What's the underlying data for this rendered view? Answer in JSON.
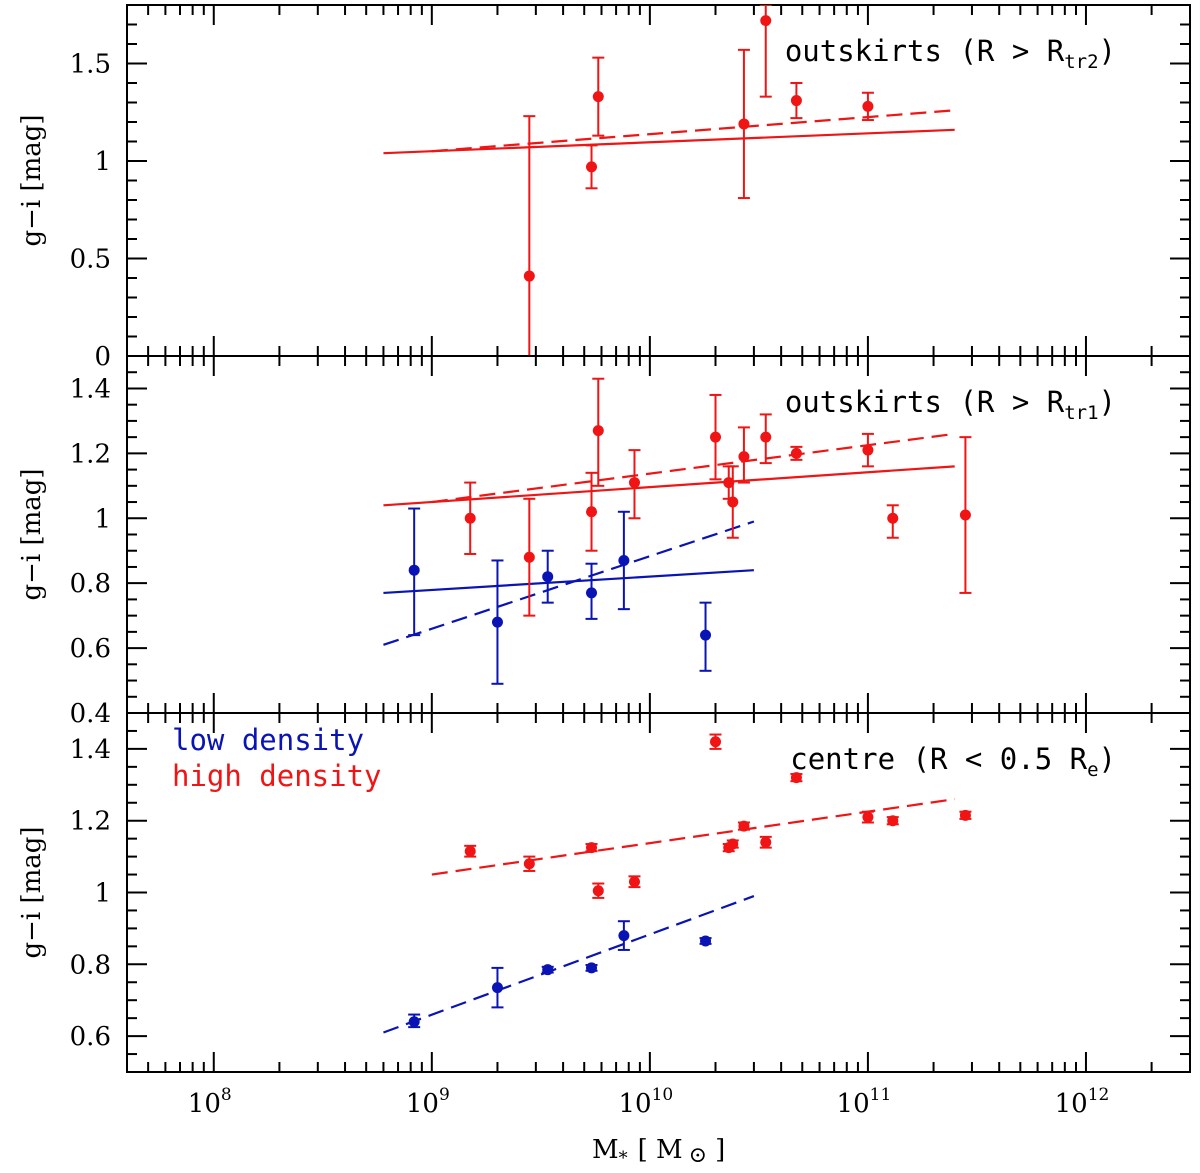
{
  "chart_data": {
    "type": "scatter",
    "xlabel": "M",
    "xlabel_subscript": "*",
    "xlabel_unit": "[ M",
    "xlabel_unit_close": "]",
    "xlabel_unit_symbol": "⊙",
    "xscale": "log",
    "xlim": [
      40000000,
      3000000000000
    ],
    "xticks": [
      {
        "value": 100000000,
        "base": "10",
        "exp": "8"
      },
      {
        "value": 1000000000,
        "base": "10",
        "exp": "9"
      },
      {
        "value": 10000000000,
        "base": "10",
        "exp": "10"
      },
      {
        "value": 100000000000,
        "base": "10",
        "exp": "11"
      },
      {
        "value": 1000000000000,
        "base": "10",
        "exp": "12"
      }
    ],
    "colors": {
      "low": "#0a14b4",
      "high": "#f01414"
    },
    "legend": [
      {
        "label": "low density",
        "color": "#0a14b4"
      },
      {
        "label": "high density",
        "color": "#f01414"
      }
    ],
    "panels": [
      {
        "label": "outskirts (R > R",
        "label_sub": "tr2",
        "label_close": ")",
        "ylabel": "g−i [mag]",
        "ylim": [
          0,
          1.8
        ],
        "yticks": [
          {
            "v": 0,
            "t": "0"
          },
          {
            "v": 0.5,
            "t": "0.5"
          },
          {
            "v": 1,
            "t": "1"
          },
          {
            "v": 1.5,
            "t": "1.5"
          }
        ],
        "yminor": [
          0.1,
          0.2,
          0.3,
          0.4,
          0.6,
          0.7,
          0.8,
          0.9,
          1.1,
          1.2,
          1.3,
          1.4,
          1.6,
          1.7
        ],
        "series": [
          {
            "group": "high",
            "points": [
              {
                "x": 2800000000,
                "y": 0.41,
                "lo": 0.0,
                "hi": 1.23
              },
              {
                "x": 5400000000,
                "y": 0.97,
                "lo": 0.86,
                "hi": 1.08
              },
              {
                "x": 5800000000,
                "y": 1.33,
                "lo": 1.13,
                "hi": 1.53
              },
              {
                "x": 27000000000,
                "y": 1.19,
                "lo": 0.81,
                "hi": 1.57
              },
              {
                "x": 34000000000,
                "y": 1.72,
                "lo": 1.33,
                "hi": 1.8
              },
              {
                "x": 47000000000,
                "y": 1.31,
                "lo": 1.22,
                "hi": 1.4
              },
              {
                "x": 100000000000,
                "y": 1.28,
                "lo": 1.21,
                "hi": 1.35
              }
            ]
          }
        ],
        "lines": [
          {
            "group": "high",
            "style": "solid",
            "x": [
              600000000,
              250000000000
            ],
            "y": [
              1.04,
              1.16
            ]
          },
          {
            "group": "high",
            "style": "dashed",
            "x": [
              1000000000,
              250000000000
            ],
            "y": [
              1.05,
              1.26
            ]
          }
        ]
      },
      {
        "label": "outskirts (R > R",
        "label_sub": "tr1",
        "label_close": ")",
        "ylabel": "g−i [mag]",
        "ylim": [
          0.4,
          1.5
        ],
        "yticks": [
          {
            "v": 0.4,
            "t": "0.4"
          },
          {
            "v": 0.6,
            "t": "0.6"
          },
          {
            "v": 0.8,
            "t": "0.8"
          },
          {
            "v": 1,
            "t": "1"
          },
          {
            "v": 1.2,
            "t": "1.2"
          },
          {
            "v": 1.4,
            "t": "1.4"
          }
        ],
        "yminor": [
          0.45,
          0.5,
          0.55,
          0.65,
          0.7,
          0.75,
          0.85,
          0.9,
          0.95,
          1.05,
          1.1,
          1.15,
          1.25,
          1.3,
          1.35,
          1.45
        ],
        "series": [
          {
            "group": "high",
            "points": [
              {
                "x": 1500000000,
                "y": 1.0,
                "lo": 0.89,
                "hi": 1.11
              },
              {
                "x": 2800000000,
                "y": 0.88,
                "lo": 0.7,
                "hi": 1.06
              },
              {
                "x": 5400000000,
                "y": 1.02,
                "lo": 0.9,
                "hi": 1.14
              },
              {
                "x": 5800000000,
                "y": 1.27,
                "lo": 1.1,
                "hi": 1.43
              },
              {
                "x": 8500000000,
                "y": 1.11,
                "lo": 1.0,
                "hi": 1.21
              },
              {
                "x": 20000000000,
                "y": 1.25,
                "lo": 1.12,
                "hi": 1.38
              },
              {
                "x": 23000000000,
                "y": 1.11,
                "lo": 1.06,
                "hi": 1.16
              },
              {
                "x": 24000000000,
                "y": 1.05,
                "lo": 0.94,
                "hi": 1.16
              },
              {
                "x": 27000000000,
                "y": 1.19,
                "lo": 1.11,
                "hi": 1.28
              },
              {
                "x": 34000000000,
                "y": 1.25,
                "lo": 1.17,
                "hi": 1.32
              },
              {
                "x": 47000000000,
                "y": 1.2,
                "lo": 1.18,
                "hi": 1.22
              },
              {
                "x": 100000000000,
                "y": 1.21,
                "lo": 1.16,
                "hi": 1.26
              },
              {
                "x": 130000000000,
                "y": 1.0,
                "lo": 0.94,
                "hi": 1.04
              },
              {
                "x": 280000000000,
                "y": 1.01,
                "lo": 0.77,
                "hi": 1.25
              }
            ]
          },
          {
            "group": "low",
            "points": [
              {
                "x": 830000000,
                "y": 0.84,
                "lo": 0.64,
                "hi": 1.03
              },
              {
                "x": 2000000000,
                "y": 0.68,
                "lo": 0.49,
                "hi": 0.87
              },
              {
                "x": 3400000000,
                "y": 0.82,
                "lo": 0.74,
                "hi": 0.9
              },
              {
                "x": 5400000000,
                "y": 0.77,
                "lo": 0.69,
                "hi": 0.86
              },
              {
                "x": 7600000000,
                "y": 0.87,
                "lo": 0.72,
                "hi": 1.02
              },
              {
                "x": 18000000000,
                "y": 0.64,
                "lo": 0.53,
                "hi": 0.74
              }
            ]
          }
        ],
        "lines": [
          {
            "group": "high",
            "style": "solid",
            "x": [
              600000000,
              250000000000
            ],
            "y": [
              1.04,
              1.16
            ]
          },
          {
            "group": "high",
            "style": "dashed",
            "x": [
              1000000000,
              250000000000
            ],
            "y": [
              1.05,
              1.26
            ]
          },
          {
            "group": "low",
            "style": "solid",
            "x": [
              600000000,
              30000000000
            ],
            "y": [
              0.77,
              0.84
            ]
          },
          {
            "group": "low",
            "style": "dashed",
            "x": [
              600000000,
              30000000000
            ],
            "y": [
              0.61,
              0.99
            ]
          }
        ]
      },
      {
        "label": "centre (R < 0.5 R",
        "label_sub": "e",
        "label_close": ")",
        "ylabel": "g−i [mag]",
        "ylim": [
          0.5,
          1.5
        ],
        "yticks": [
          {
            "v": 0.6,
            "t": "0.6"
          },
          {
            "v": 0.8,
            "t": "0.8"
          },
          {
            "v": 1,
            "t": "1"
          },
          {
            "v": 1.2,
            "t": "1.2"
          },
          {
            "v": 1.4,
            "t": "1.4"
          }
        ],
        "yminor": [
          0.55,
          0.65,
          0.7,
          0.75,
          0.85,
          0.9,
          0.95,
          1.05,
          1.1,
          1.15,
          1.25,
          1.3,
          1.35,
          1.45
        ],
        "series": [
          {
            "group": "high",
            "points": [
              {
                "x": 1500000000,
                "y": 1.115,
                "lo": 1.1,
                "hi": 1.13
              },
              {
                "x": 2800000000,
                "y": 1.08,
                "lo": 1.06,
                "hi": 1.1
              },
              {
                "x": 5400000000,
                "y": 1.125,
                "lo": 1.115,
                "hi": 1.135
              },
              {
                "x": 5800000000,
                "y": 1.005,
                "lo": 0.985,
                "hi": 1.025
              },
              {
                "x": 8500000000,
                "y": 1.03,
                "lo": 1.015,
                "hi": 1.045
              },
              {
                "x": 20000000000,
                "y": 1.42,
                "lo": 1.4,
                "hi": 1.44
              },
              {
                "x": 23000000000,
                "y": 1.125,
                "lo": 1.115,
                "hi": 1.135
              },
              {
                "x": 24000000000,
                "y": 1.135,
                "lo": 1.125,
                "hi": 1.145
              },
              {
                "x": 27000000000,
                "y": 1.185,
                "lo": 1.175,
                "hi": 1.195
              },
              {
                "x": 34000000000,
                "y": 1.14,
                "lo": 1.125,
                "hi": 1.155
              },
              {
                "x": 47000000000,
                "y": 1.32,
                "lo": 1.31,
                "hi": 1.33
              },
              {
                "x": 100000000000,
                "y": 1.21,
                "lo": 1.195,
                "hi": 1.225
              },
              {
                "x": 130000000000,
                "y": 1.2,
                "lo": 1.19,
                "hi": 1.21
              },
              {
                "x": 280000000000,
                "y": 1.215,
                "lo": 1.205,
                "hi": 1.225
              }
            ]
          },
          {
            "group": "low",
            "points": [
              {
                "x": 830000000,
                "y": 0.64,
                "lo": 0.625,
                "hi": 0.66
              },
              {
                "x": 2000000000,
                "y": 0.735,
                "lo": 0.68,
                "hi": 0.79
              },
              {
                "x": 3400000000,
                "y": 0.785,
                "lo": 0.777,
                "hi": 0.793
              },
              {
                "x": 5400000000,
                "y": 0.79,
                "lo": 0.782,
                "hi": 0.798
              },
              {
                "x": 7600000000,
                "y": 0.88,
                "lo": 0.84,
                "hi": 0.92
              },
              {
                "x": 18000000000,
                "y": 0.865,
                "lo": 0.857,
                "hi": 0.873
              }
            ]
          }
        ],
        "lines": [
          {
            "group": "high",
            "style": "dashed",
            "x": [
              1000000000,
              250000000000
            ],
            "y": [
              1.05,
              1.26
            ]
          },
          {
            "group": "low",
            "style": "dashed",
            "x": [
              600000000,
              30000000000
            ],
            "y": [
              0.61,
              0.99
            ]
          }
        ]
      }
    ]
  }
}
